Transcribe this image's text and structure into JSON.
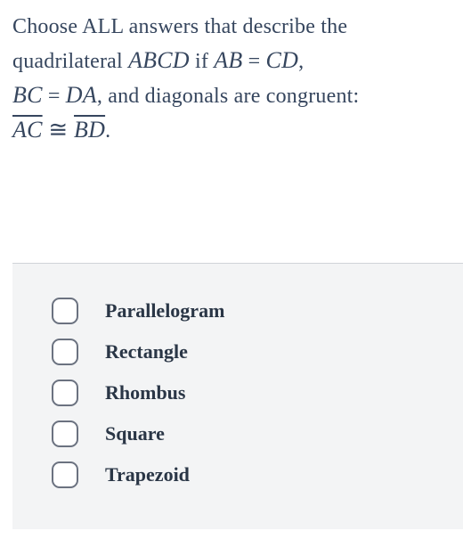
{
  "question": {
    "line1_pre": "Choose ALL answers that describe the",
    "line2_pre": "quadrilateral ",
    "abcd": "ABCD",
    "if_text": " if ",
    "ab": "AB",
    "eq1": " = ",
    "cd": "CD",
    "comma": ",",
    "bc": "BC",
    "eq2": " = ",
    "da": "DA",
    "diag_text": ", and diagonals are congruent:",
    "ac": "AC",
    "cong": " ≅ ",
    "bd": "BD",
    "period": "."
  },
  "options": [
    {
      "label": "Parallelogram"
    },
    {
      "label": "Rectangle"
    },
    {
      "label": "Rhombus"
    },
    {
      "label": "Square"
    },
    {
      "label": "Trapezoid"
    }
  ],
  "styling": {
    "background_color": "#ffffff",
    "text_color": "#36465e",
    "answers_bg": "#f3f4f5",
    "answers_border": "#d0d3d8",
    "checkbox_border": "#6b7280",
    "checkbox_bg": "#ffffff",
    "checkbox_radius": 9,
    "question_fontsize": 24,
    "option_fontsize": 22,
    "font_family": "Georgia"
  }
}
